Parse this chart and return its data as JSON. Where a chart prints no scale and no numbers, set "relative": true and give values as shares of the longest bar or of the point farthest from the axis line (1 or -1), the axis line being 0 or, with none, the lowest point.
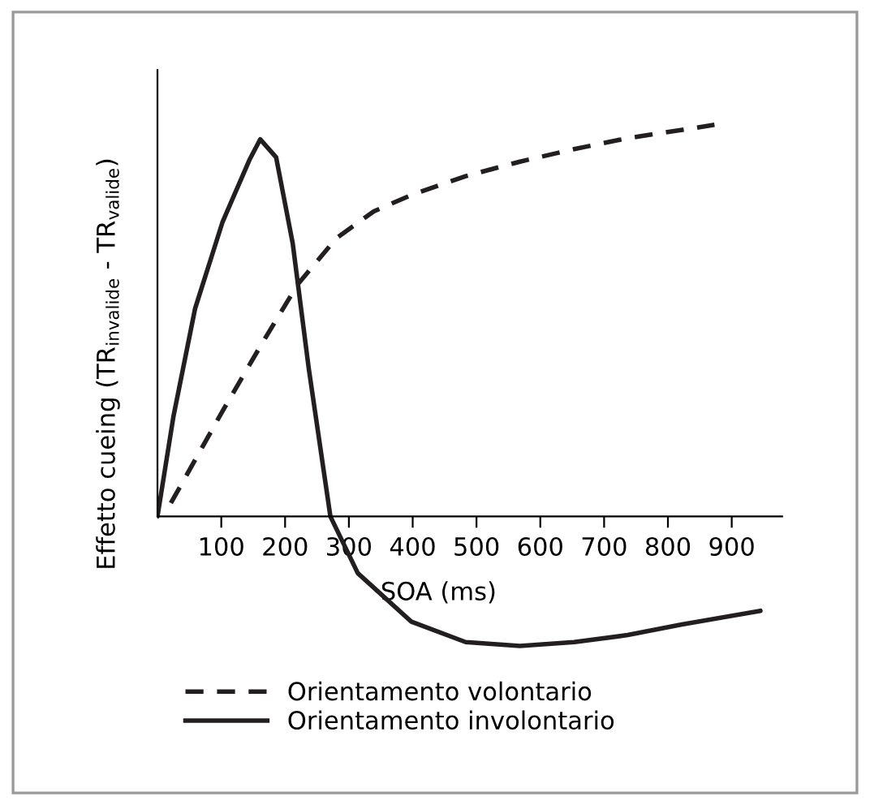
{
  "chart_data": {
    "type": "line",
    "relative": true,
    "xlabel": "SOA (ms)",
    "ylabel": "Effetto cueing (TR$_{invalide}$ - TR$_{valide}$)",
    "xlim": [
      0,
      979
    ],
    "xticks": [
      100,
      200,
      300,
      400,
      500,
      600,
      700,
      800,
      900
    ],
    "grid": false,
    "legend": "bottom",
    "marker": "none",
    "series": [
      {
        "name": "Orientamento volontario",
        "color": "#231f20",
        "line_style": "dashed",
        "x": [
          21,
          102,
          161,
          220,
          280,
          339,
          398,
          483,
          568,
          653,
          737,
          873
        ],
        "values": [
          0.034,
          0.269,
          0.434,
          0.593,
          0.71,
          0.779,
          0.821,
          0.869,
          0.906,
          0.938,
          0.966,
          1.0
        ]
      },
      {
        "name": "Orientamento involontario",
        "color": "#231f20",
        "line_style": "solid",
        "x": [
          0,
          25,
          59,
          102,
          144,
          161,
          186,
          212,
          237,
          271,
          314,
          398,
          483,
          568,
          653,
          737,
          822,
          945
        ],
        "values": [
          0,
          0.255,
          0.531,
          0.752,
          0.91,
          0.963,
          0.917,
          0.697,
          0.379,
          0,
          -0.145,
          -0.269,
          -0.321,
          -0.331,
          -0.321,
          -0.303,
          -0.276,
          -0.241
        ]
      }
    ]
  }
}
